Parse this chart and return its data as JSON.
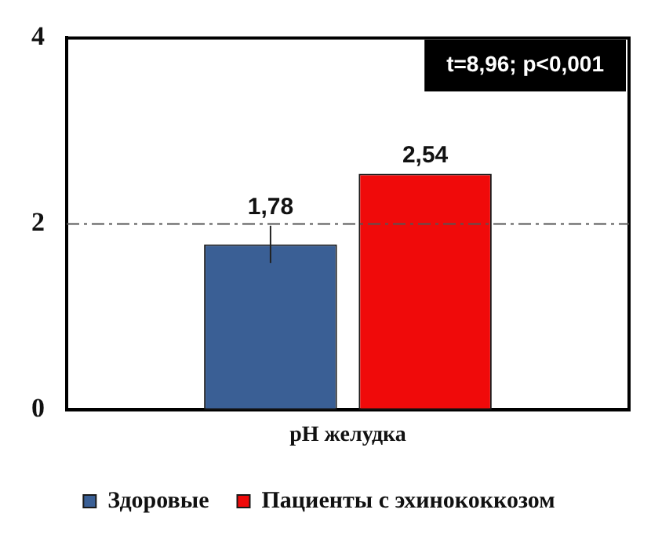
{
  "chart_data": {
    "type": "bar",
    "categories": [
      "pH желудка"
    ],
    "series": [
      {
        "name": "Здоровые",
        "color": "#3a5f95",
        "values": [
          1.78
        ],
        "value_labels": [
          "1,78"
        ],
        "errors": [
          0.2
        ]
      },
      {
        "name": "Пациенты с эхинококкозом",
        "color": "#f00a0a",
        "values": [
          2.54
        ],
        "value_labels": [
          "2,54"
        ]
      }
    ],
    "ylim": [
      0,
      4
    ],
    "yticks": [
      0,
      2,
      4
    ],
    "grid": false,
    "legend": "bottom",
    "ref_lines": [
      {
        "axis": "y",
        "value": 2,
        "color": "#555555",
        "line_style": "dashdot"
      }
    ],
    "annotations": [
      "t=8,96; p<0,001"
    ]
  }
}
